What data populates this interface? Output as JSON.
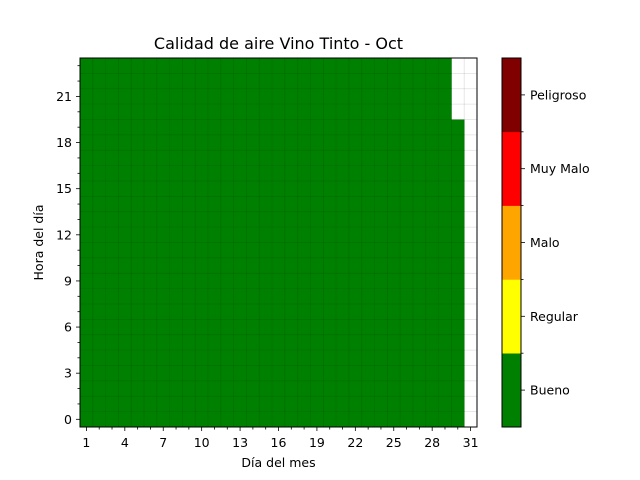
{
  "chart_data": {
    "type": "heatmap",
    "title": "Calidad de aire Vino Tinto - Oct",
    "xlabel": "Día del mes",
    "ylabel": "Hora del día",
    "x_ticks": [
      1,
      4,
      7,
      10,
      13,
      16,
      19,
      22,
      25,
      28,
      31
    ],
    "y_ticks": [
      0,
      3,
      6,
      9,
      12,
      15,
      18,
      21
    ],
    "xlim": [
      1,
      31
    ],
    "ylim": [
      0,
      23
    ],
    "grid": true,
    "colorbar": {
      "categories": [
        "Bueno",
        "Regular",
        "Malo",
        "Muy Malo",
        "Peligroso"
      ],
      "colors": [
        "#008000",
        "#ffff00",
        "#ffa500",
        "#ff0000",
        "#800000"
      ]
    },
    "cell_color_missing": "#ffffff",
    "values_summary": "All recorded hours are Bueno",
    "coverage": [
      {
        "days": [
          1,
          29
        ],
        "hours": [
          0,
          23
        ],
        "category": "Bueno"
      },
      {
        "days": [
          30,
          30
        ],
        "hours": [
          0,
          19
        ],
        "category": "Bueno"
      }
    ]
  }
}
